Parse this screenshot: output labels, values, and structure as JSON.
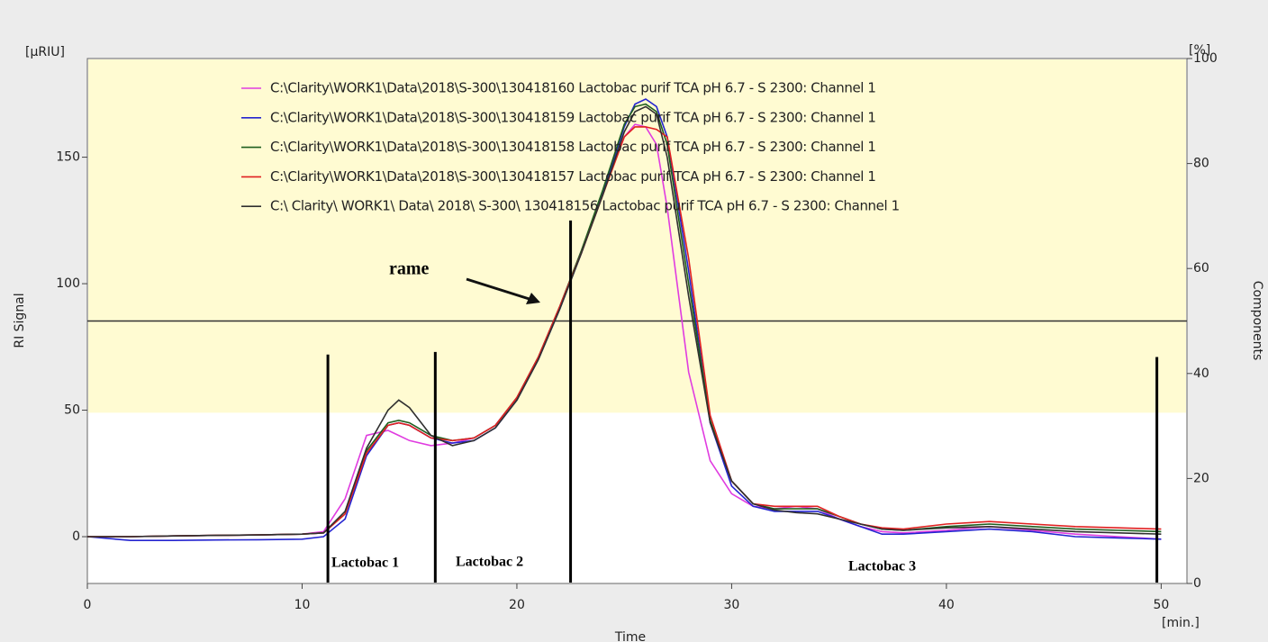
{
  "chart_data": {
    "type": "line",
    "y_unit_label": "[µRIU]",
    "y_label": "RI Signal",
    "y2_unit_label": "[%]",
    "y2_label": "Components",
    "x_label": "Time",
    "x_unit_label": "[min.]",
    "x": [
      0,
      2,
      4,
      6,
      8,
      10,
      11,
      12,
      13,
      14,
      14.5,
      15,
      16,
      17,
      18,
      19,
      20,
      21,
      22,
      23,
      24,
      25,
      25.5,
      26,
      26.5,
      27,
      28,
      29,
      30,
      31,
      32,
      33,
      34,
      35,
      36,
      37,
      38,
      40,
      42,
      44,
      46,
      48,
      50
    ],
    "series": [
      {
        "name": "C:\\Clarity\\WORK1\\Data\\2018\\S-300\\130418160 Lactobac purif TCA pH 6.7 - S 2300: Channel 1",
        "color": "#e03ce0",
        "values": [
          0,
          0,
          0.3,
          0.5,
          0.7,
          1,
          2,
          15,
          40,
          42,
          40,
          38,
          36,
          37,
          39,
          44,
          55,
          71,
          91,
          113,
          136,
          158,
          163,
          162,
          155,
          130,
          65,
          30,
          17,
          12,
          11,
          12,
          11,
          7,
          4,
          2,
          1.5,
          2.5,
          4,
          2.5,
          1,
          0,
          -1
        ]
      },
      {
        "name": "C:\\Clarity\\WORK1\\Data\\2018\\S-300\\130418159 Lactobac purif TCA pH 6.7 - S 2300: Channel 1",
        "color": "#2424d0",
        "values": [
          0,
          -1.5,
          -1.5,
          -1.3,
          -1.2,
          -1,
          0,
          7,
          32,
          44,
          45,
          44,
          39,
          37,
          38,
          43,
          54,
          70,
          90,
          112,
          136,
          162,
          171,
          173,
          170,
          158,
          105,
          45,
          20,
          12,
          10,
          10,
          10,
          7,
          4,
          1,
          1,
          2,
          3,
          2,
          0,
          -0.5,
          -1
        ]
      },
      {
        "name": "C:\\Clarity\\WORK1\\Data\\2018\\S-300\\130418158 Lactobac purif TCA pH 6.7 - S 2300: Channel 1",
        "color": "#1e5e1e",
        "values": [
          0,
          0,
          0.3,
          0.5,
          0.7,
          1,
          1.5,
          9,
          34,
          45,
          46,
          45,
          40,
          38,
          39,
          44,
          55,
          71,
          91,
          113,
          137,
          163,
          170,
          171,
          168,
          155,
          100,
          46,
          22,
          13,
          11,
          11,
          11,
          8,
          5,
          3,
          2.5,
          4,
          5,
          4,
          3,
          2.5,
          2
        ]
      },
      {
        "name": "C:\\Clarity\\WORK1\\Data\\2018\\S-300\\130418157 Lactobac purif TCA pH 6.7 - S 2300: Channel 1",
        "color": "#e02020",
        "values": [
          0,
          0,
          0.3,
          0.5,
          0.7,
          1,
          1.5,
          9,
          33,
          44,
          45,
          44,
          39,
          38,
          39,
          44,
          55,
          71,
          91,
          112,
          135,
          158,
          162,
          162,
          161,
          158,
          110,
          48,
          22,
          13,
          12,
          12,
          12,
          8,
          5,
          3.5,
          3,
          5,
          6,
          5,
          4,
          3.5,
          3
        ]
      },
      {
        "name": "C:\\ Clarity\\ WORK1\\ Data\\ 2018\\ S-300\\ 130418156 Lactobac purif TCA pH 6.7 - S 2300: Channel 1",
        "color": "#303030",
        "values": [
          0,
          0,
          0.3,
          0.5,
          0.7,
          1,
          1.5,
          10,
          35,
          50,
          54,
          51,
          40,
          36,
          38,
          43,
          54,
          70,
          90,
          112,
          135,
          160,
          168,
          170,
          167,
          150,
          95,
          45,
          22,
          13,
          10.5,
          9.5,
          9,
          7,
          5,
          3,
          2.5,
          3.5,
          4,
          3,
          2,
          1.5,
          1
        ]
      }
    ],
    "xlim": [
      0,
      51.2
    ],
    "xticks": [
      0,
      10,
      20,
      30,
      40,
      50
    ],
    "ylim": [
      -18.5,
      189
    ],
    "yticks": [
      0,
      50,
      100,
      150
    ],
    "y2lim": [
      0,
      100
    ],
    "y2ticks": [
      0,
      20,
      40,
      60,
      80,
      100
    ],
    "band_from": 49,
    "band_color": "#fffbd2",
    "hline_y2": 50,
    "dividers": [
      {
        "x": 11.2,
        "top": 72
      },
      {
        "x": 16.2,
        "top": 73
      },
      {
        "x": 22.5,
        "top": 125
      },
      {
        "x": 49.8,
        "top": 71
      }
    ],
    "annotations": [
      "rame",
      "Lactobac 1",
      "Lactobac 2",
      "Lactobac 3"
    ]
  }
}
